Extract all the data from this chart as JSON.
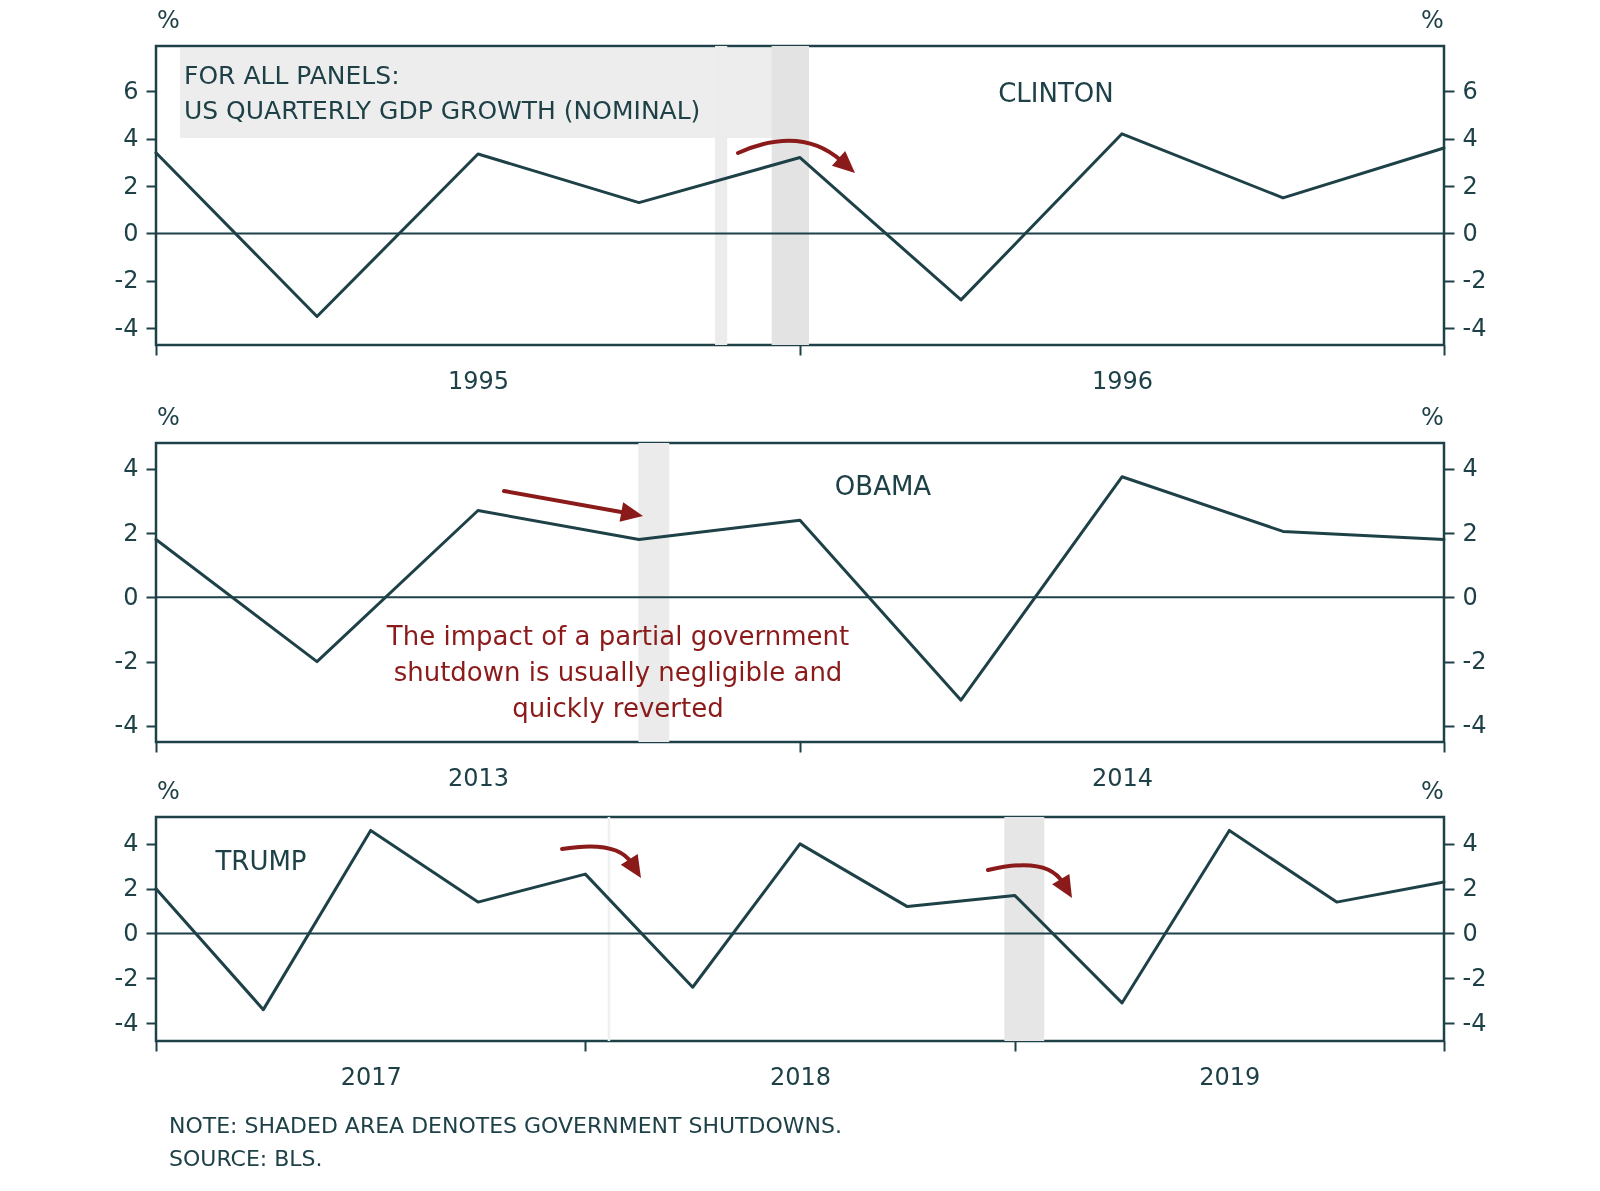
{
  "chart_data": [
    {
      "type": "line",
      "x": [
        1995,
        1995.25,
        1995.5,
        1995.75,
        1996,
        1996.25,
        1996.5,
        1996.75,
        1997
      ],
      "series": [
        {
          "color": "#1e4148",
          "values": [
            3.4,
            -3.5,
            3.35,
            1.3,
            3.2,
            -2.8,
            4.2,
            1.5,
            3.6
          ]
        }
      ],
      "xlim": [
        1995,
        1997
      ],
      "xticks": [
        {
          "value": 1995,
          "label": null
        },
        {
          "value": 1995.5,
          "label": "1995"
        },
        {
          "value": 1996,
          "label": null
        },
        {
          "value": 1996.5,
          "label": "1996"
        },
        {
          "value": 1997,
          "label": null
        }
      ],
      "ylim": [
        -4.7,
        7.9
      ],
      "yticks": [
        -4,
        -2,
        0,
        2,
        4,
        6
      ],
      "y2lim": [
        -4.7,
        7.9
      ],
      "y2ticks": [
        -4,
        -2,
        0,
        2,
        4,
        6
      ],
      "ylabel": "%",
      "y2label": "%",
      "ref_lines": [
        {
          "axis": "y",
          "value": 0,
          "color": "#1e4148"
        }
      ],
      "bands": [
        {
          "axis": "x",
          "from": 1995.868,
          "to": 1995.887,
          "color": "#ececec"
        },
        {
          "axis": "x",
          "from": 1995.956,
          "to": 1996.014,
          "color": "#e3e3e3"
        }
      ],
      "annotations": [
        "FOR ALL PANELS:\nUS QUARTERLY GDP GROWTH (NOMINAL)",
        "CLINTON"
      ]
    },
    {
      "type": "line",
      "x": [
        2013,
        2013.25,
        2013.5,
        2013.75,
        2014,
        2014.25,
        2014.5,
        2014.75,
        2015
      ],
      "series": [
        {
          "color": "#1e4148",
          "values": [
            1.8,
            -2.0,
            2.7,
            1.8,
            2.4,
            -3.2,
            3.75,
            2.05,
            1.8
          ]
        }
      ],
      "xlim": [
        2013,
        2015
      ],
      "xticks": [
        {
          "value": 2013,
          "label": null
        },
        {
          "value": 2013.5,
          "label": "2013"
        },
        {
          "value": 2014,
          "label": null
        },
        {
          "value": 2014.5,
          "label": "2014"
        },
        {
          "value": 2015,
          "label": null
        }
      ],
      "ylim": [
        -4.5,
        4.8
      ],
      "yticks": [
        -4,
        -2,
        0,
        2,
        4
      ],
      "y2lim": [
        -4.5,
        4.8
      ],
      "y2ticks": [
        -4,
        -2,
        0,
        2,
        4
      ],
      "ylabel": "%",
      "y2label": "%",
      "ref_lines": [
        {
          "axis": "y",
          "value": 0,
          "color": "#1e4148"
        }
      ],
      "bands": [
        {
          "axis": "x",
          "from": 2013.749,
          "to": 2013.797,
          "color": "#ebebeb"
        }
      ],
      "annotations": [
        "OBAMA",
        "The impact of a partial government\nshutdown is usually negligible and\nquickly reverted"
      ]
    },
    {
      "type": "line",
      "x": [
        2017,
        2017.25,
        2017.5,
        2017.75,
        2018,
        2018.25,
        2018.5,
        2018.75,
        2019,
        2019.25,
        2019.5,
        2019.75,
        2020
      ],
      "series": [
        {
          "color": "#1e4148",
          "values": [
            2.0,
            -3.4,
            4.6,
            1.4,
            2.65,
            -2.4,
            4.0,
            1.2,
            1.7,
            -3.1,
            4.6,
            1.4,
            2.3
          ]
        }
      ],
      "xlim": [
        2017,
        2020
      ],
      "xticks": [
        {
          "value": 2017,
          "label": null
        },
        {
          "value": 2017.5,
          "label": "2017"
        },
        {
          "value": 2018,
          "label": null
        },
        {
          "value": 2018.5,
          "label": "2018"
        },
        {
          "value": 2019,
          "label": null
        },
        {
          "value": 2019.5,
          "label": "2019"
        },
        {
          "value": 2020,
          "label": null
        }
      ],
      "ylim": [
        -4.8,
        5.2
      ],
      "yticks": [
        -4,
        -2,
        0,
        2,
        4
      ],
      "y2lim": [
        -4.8,
        5.2
      ],
      "y2ticks": [
        -4,
        -2,
        0,
        2,
        4
      ],
      "ylabel": "%",
      "y2label": "%",
      "ref_lines": [
        {
          "axis": "y",
          "value": 0,
          "color": "#1e4148"
        }
      ],
      "bands": [
        {
          "axis": "x",
          "from": 2018.052,
          "to": 2018.058,
          "color": "#f0f0f0"
        },
        {
          "axis": "x",
          "from": 2018.976,
          "to": 2019.069,
          "color": "#e6e6e6"
        }
      ],
      "annotations": [
        "TRUMP",
        "NOTE: SHADED AREA DENOTES GOVERNMENT SHUTDOWNS.\nSOURCE: BLS."
      ]
    }
  ]
}
